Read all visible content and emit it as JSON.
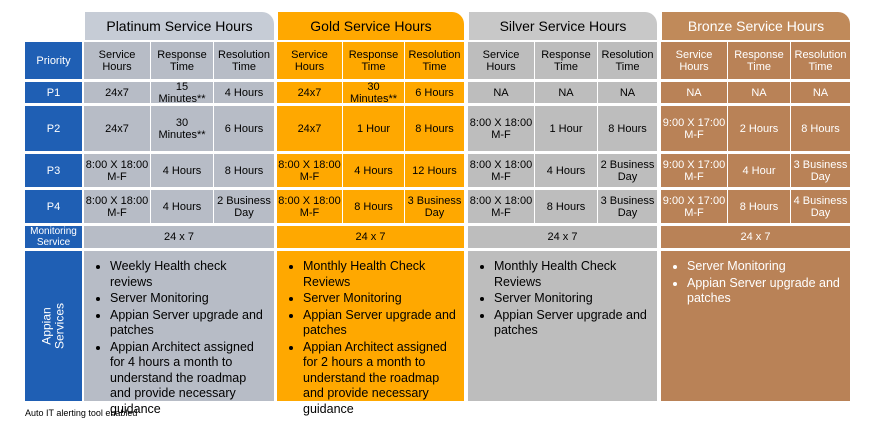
{
  "tiers": [
    {
      "name": "Platinum Service Hours",
      "header_color": "#c6ccd6",
      "cell_color": "#b7bcc6",
      "text_color": "#000000",
      "columns": [
        "Service Hours",
        "Response Time",
        "Resolution Time"
      ],
      "rows": [
        [
          "24x7",
          "15 Minutes**",
          "4 Hours"
        ],
        [
          "24x7",
          "30 Minutes**",
          "6 Hours"
        ],
        [
          "8:00 X 18:00 M-F",
          "4 Hours",
          "8 Hours"
        ],
        [
          "8:00 X 18:00 M-F",
          "4 Hours",
          "2 Business Day"
        ]
      ],
      "monitoring": "24 x 7",
      "services": [
        "Weekly Health check reviews",
        "Server Monitoring",
        "Appian Server upgrade and patches",
        "Appian Architect assigned for 4 hours a month to understand the roadmap and provide necessary guidance"
      ]
    },
    {
      "name": "Gold Service Hours",
      "header_color": "#ffa800",
      "cell_color": "#ffa800",
      "text_color": "#000000",
      "columns": [
        "Service Hours",
        "Response Time",
        "Resolution Time"
      ],
      "rows": [
        [
          "24x7",
          "30 Minutes**",
          "6 Hours"
        ],
        [
          "24x7",
          "1 Hour",
          "8 Hours"
        ],
        [
          "8:00 X 18:00 M-F",
          "4 Hours",
          "12 Hours"
        ],
        [
          "8:00 X 18:00 M-F",
          "8 Hours",
          "3 Business Day"
        ]
      ],
      "monitoring": "24 x 7",
      "services": [
        "Monthly Health Check Reviews",
        "Server Monitoring",
        "Appian Server upgrade and patches",
        "Appian Architect assigned for 2 hours a month to understand the roadmap and provide necessary guidance"
      ]
    },
    {
      "name": "Silver Service Hours",
      "header_color": "#c8c8c8",
      "cell_color": "#bdbdbd",
      "text_color": "#000000",
      "columns": [
        "Service Hours",
        "Response Time",
        "Resolution Time"
      ],
      "rows": [
        [
          "NA",
          "NA",
          "NA"
        ],
        [
          "8:00 X 18:00 M-F",
          "1 Hour",
          "8 Hours"
        ],
        [
          "8:00 X 18:00 M-F",
          "4 Hours",
          "2 Business Day"
        ],
        [
          "8:00 X 18:00 M-F",
          "8 Hours",
          "3 Business Day"
        ]
      ],
      "monitoring": "24 x 7",
      "services": [
        "Monthly Health Check Reviews",
        "Server Monitoring",
        "Appian Server upgrade and patches"
      ]
    },
    {
      "name": "Bronze Service Hours",
      "header_color": "#c08a5a",
      "cell_color": "#b98257",
      "text_color": "#ffffff",
      "columns": [
        "Service Hours",
        "Response Time",
        "Resolution Time"
      ],
      "rows": [
        [
          "NA",
          "NA",
          "NA"
        ],
        [
          "9:00 X 17:00 M-F",
          "2 Hours",
          "8 Hours"
        ],
        [
          "9:00 X 17:00 M-F",
          "4 Hour",
          "3 Business Day"
        ],
        [
          "9:00 X 17:00 M-F",
          "8 Hours",
          "4 Business Day"
        ]
      ],
      "monitoring": "24 x 7",
      "services": [
        "Server Monitoring",
        "Appian Server upgrade and patches"
      ]
    }
  ],
  "row_labels": {
    "priority": "Priority",
    "priorities": [
      "P1",
      "P2",
      "P3",
      "P4"
    ],
    "monitoring": "Monitoring Service",
    "services": "Appian Services"
  },
  "label_color": "#1f5fb4",
  "footnote": "Auto IT alerting tool enabled"
}
